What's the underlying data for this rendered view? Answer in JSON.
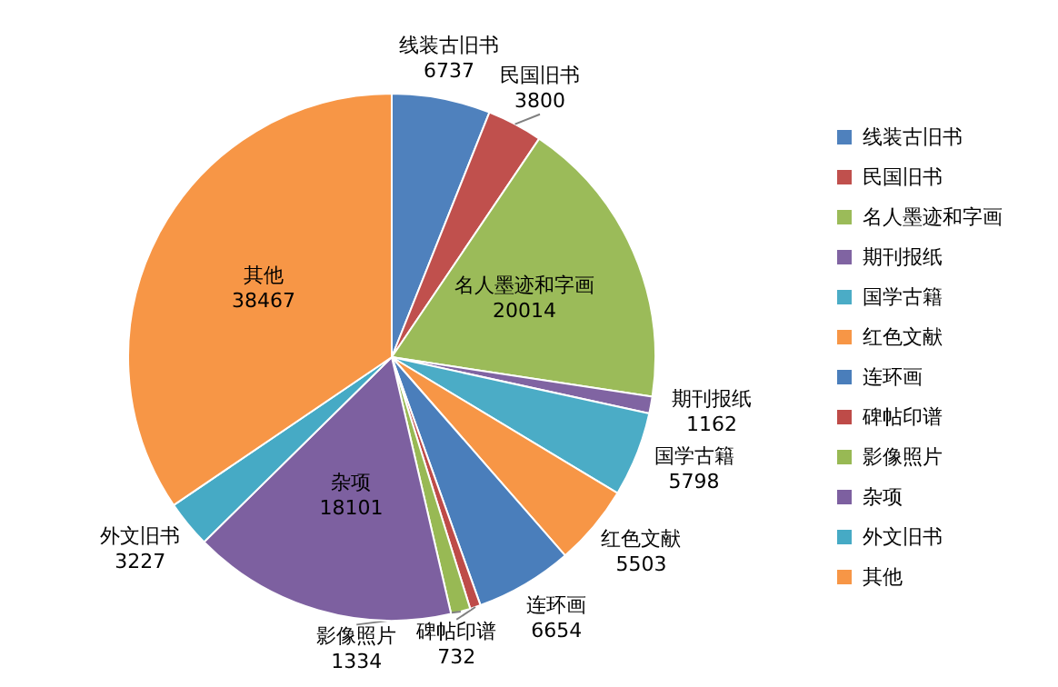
{
  "chart_data": {
    "type": "pie",
    "categories": [
      "线装古旧书",
      "民国旧书",
      "名人墨迹和字画",
      "期刊报纸",
      "国学古籍",
      "红色文献",
      "连环画",
      "碑帖印谱",
      "影像照片",
      "杂项",
      "外文旧书",
      "其他"
    ],
    "values": [
      6737,
      3800,
      20014,
      1162,
      5798,
      5503,
      6654,
      732,
      1334,
      18101,
      3227,
      38467
    ],
    "colors": [
      "#4f81bd",
      "#c0504d",
      "#9bbb59",
      "#8064a2",
      "#4bacc6",
      "#f79646",
      "#4a7ebb",
      "#be4b48",
      "#98b954",
      "#7d60a0",
      "#46aac5",
      "#f79646"
    ],
    "data_labels": true,
    "legend": "right"
  }
}
